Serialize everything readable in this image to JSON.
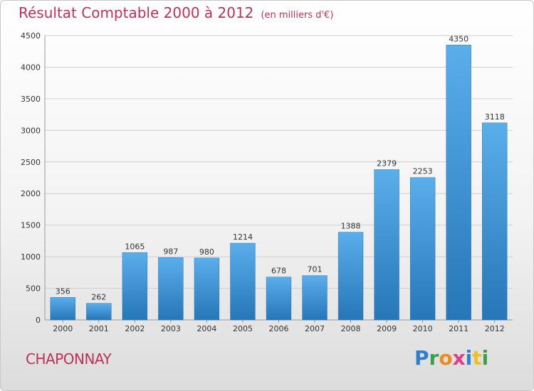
{
  "header": {
    "title": "Résultat Comptable 2000 à 2012",
    "subtitle": "(en milliers d'€)"
  },
  "footer": {
    "commune": "CHAPONNAY",
    "logo_letters": [
      "P",
      "r",
      "o",
      "x",
      "i",
      "t",
      "i"
    ]
  },
  "colors": {
    "title": "#c0305a",
    "bar_top": "#5aaeea",
    "bar_bottom": "#2676b8",
    "logo": [
      "#2f7fd0",
      "#3aa04a",
      "#f08a1e",
      "#e03c8a",
      "#2f7fd0",
      "#f0c020",
      "#3aa04a"
    ]
  },
  "chart_data": {
    "type": "bar",
    "categories": [
      "2000",
      "2001",
      "2002",
      "2003",
      "2004",
      "2005",
      "2006",
      "2007",
      "2008",
      "2009",
      "2010",
      "2011",
      "2012"
    ],
    "values": [
      356,
      262,
      1065,
      987,
      980,
      1214,
      678,
      701,
      1388,
      2379,
      2253,
      4350,
      3118
    ],
    "ylim": [
      0,
      4500
    ],
    "yticks": [
      0,
      500,
      1000,
      1500,
      2000,
      2500,
      3000,
      3500,
      4000,
      4500
    ],
    "grid": true,
    "data_labels": true
  }
}
